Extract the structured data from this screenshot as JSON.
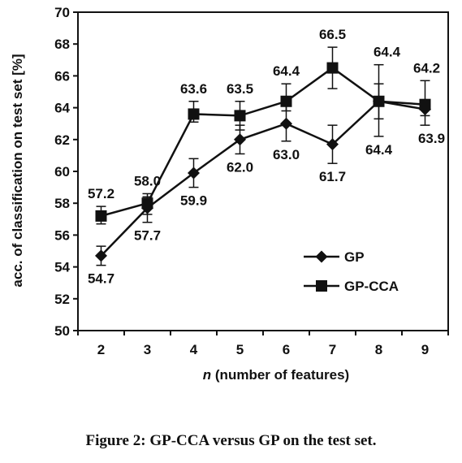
{
  "chart_data": {
    "type": "line",
    "title": "",
    "xlabel_var": "n",
    "xlabel_rest": " (number of features)",
    "ylabel": "acc. of classification on test set [%]",
    "x": [
      2,
      3,
      4,
      5,
      6,
      7,
      8,
      9
    ],
    "ylim": [
      50,
      70
    ],
    "yticks": [
      50,
      52,
      54,
      56,
      58,
      60,
      62,
      64,
      66,
      68,
      70
    ],
    "grid": false,
    "legend_position": "lower-right",
    "series": [
      {
        "name": "GP",
        "marker": "diamond",
        "values": [
          54.7,
          57.7,
          59.9,
          62.0,
          63.0,
          61.7,
          64.4,
          63.9
        ],
        "labels": [
          "54.7",
          "57.7",
          "59.9",
          "62.0",
          "63.0",
          "61.7",
          "64.4",
          "63.9"
        ],
        "err_low": [
          0.6,
          0.9,
          0.9,
          0.9,
          1.1,
          1.2,
          2.2,
          1.0
        ],
        "err_high": [
          0.6,
          0.7,
          0.9,
          0.9,
          1.1,
          1.2,
          1.1,
          0.6
        ]
      },
      {
        "name": "GP-CCA",
        "marker": "square",
        "values": [
          57.2,
          58.0,
          63.6,
          63.5,
          64.4,
          66.5,
          64.4,
          64.2
        ],
        "labels": [
          "57.2",
          "58.0",
          "63.6",
          "63.5",
          "64.4",
          "66.5",
          "64.4",
          "64.2"
        ],
        "err_low": [
          0.5,
          0.7,
          0.5,
          0.9,
          0.6,
          1.3,
          1.1,
          0.7
        ],
        "err_high": [
          0.6,
          0.6,
          0.8,
          0.9,
          1.1,
          1.3,
          2.3,
          1.5
        ]
      }
    ]
  },
  "caption": "Figure 2: GP-CCA versus GP on the test set."
}
